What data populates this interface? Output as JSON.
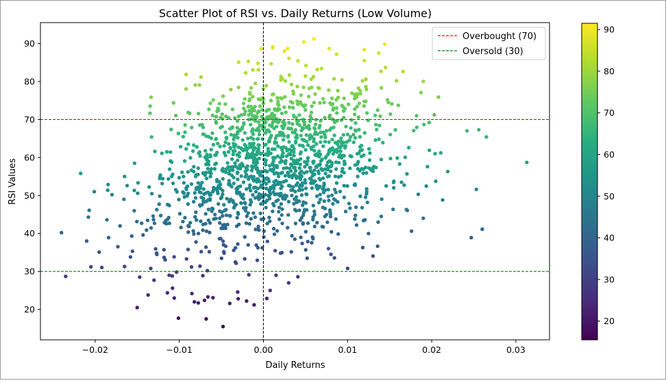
{
  "chart_data": {
    "type": "scatter",
    "title": "Scatter Plot of RSI vs. Daily Returns (Low Volume)",
    "xlabel": "Daily Returns",
    "ylabel": "RSI Values",
    "xlim": [
      -0.0265,
      0.034
    ],
    "ylim": [
      12,
      95.5
    ],
    "x_ticks": [
      -0.02,
      -0.01,
      0.0,
      0.01,
      0.02,
      0.03
    ],
    "x_tick_labels": [
      "−0.02",
      "−0.01",
      "0.00",
      "0.01",
      "0.02",
      "0.03"
    ],
    "y_ticks": [
      20,
      30,
      40,
      50,
      60,
      70,
      80,
      90
    ],
    "y_tick_labels": [
      "20",
      "30",
      "40",
      "50",
      "60",
      "70",
      "80",
      "90"
    ],
    "grid": false,
    "colormap": "viridis",
    "color_value": "RSI",
    "colorbar": {
      "range": [
        15.5,
        91.5
      ],
      "ticks": [
        20,
        30,
        40,
        50,
        60,
        70,
        80,
        90
      ],
      "tick_labels": [
        "20",
        "30",
        "40",
        "50",
        "60",
        "70",
        "80",
        "90"
      ]
    },
    "reference_lines": [
      {
        "orientation": "horizontal",
        "value": 70,
        "color": "#ff0000",
        "style": "dashed",
        "label": "Overbought (70)"
      },
      {
        "orientation": "horizontal",
        "value": 30,
        "color": "#008000",
        "style": "dashed",
        "label": "Oversold (30)"
      },
      {
        "orientation": "vertical",
        "value": 0.0,
        "color": "#000000",
        "style": "dashed",
        "label": ""
      }
    ],
    "legend_placement": "top-right",
    "legend": [
      "Overbought (70)",
      "Oversold (30)"
    ],
    "points": [
      [
        -0.024,
        40.2
      ],
      [
        -0.0235,
        28.7
      ],
      [
        -0.021,
        38.0
      ],
      [
        -0.0205,
        31.2
      ],
      [
        -0.0208,
        44.3
      ],
      [
        -0.0207,
        46.1
      ],
      [
        -0.0201,
        51.0
      ],
      [
        -0.0186,
        43.6
      ],
      [
        -0.0184,
        38.9
      ],
      [
        -0.018,
        50.2
      ],
      [
        -0.0173,
        36.5
      ],
      [
        -0.0165,
        31.3
      ],
      [
        -0.0165,
        55.0
      ],
      [
        -0.0162,
        52.6
      ],
      [
        -0.0158,
        33.8
      ],
      [
        -0.015,
        20.5
      ],
      [
        -0.0147,
        28.5
      ],
      [
        -0.0143,
        39.6
      ],
      [
        -0.0137,
        23.8
      ],
      [
        -0.013,
        27.7
      ],
      [
        -0.0129,
        61.6
      ],
      [
        -0.0122,
        44.7
      ],
      [
        -0.0118,
        33.7
      ],
      [
        -0.0112,
        29.0
      ],
      [
        -0.0108,
        25.6
      ],
      [
        -0.0106,
        23.0
      ],
      [
        -0.0101,
        17.7
      ],
      [
        -0.0101,
        66.3
      ],
      [
        -0.0095,
        55.0
      ],
      [
        -0.0085,
        24.2
      ],
      [
        -0.0082,
        22.0
      ],
      [
        -0.0076,
        79.1
      ],
      [
        -0.0072,
        28.9
      ],
      [
        -0.007,
        22.4
      ],
      [
        -0.0066,
        23.3
      ],
      [
        -0.006,
        23.1
      ],
      [
        -0.0048,
        15.5
      ],
      [
        -0.004,
        21.6
      ],
      [
        -0.003,
        22.8
      ],
      [
        -0.002,
        22.2
      ],
      [
        -0.0011,
        21.2
      ],
      [
        0.0004,
        22.9
      ],
      [
        0.0008,
        25.0
      ],
      [
        0.0015,
        29.0
      ],
      [
        0.003,
        27.0
      ],
      [
        0.0041,
        28.6
      ],
      [
        0.0052,
        33.5
      ],
      [
        0.01,
        30.8
      ],
      [
        0.0118,
        36.3
      ],
      [
        0.014,
        44.5
      ],
      [
        0.017,
        46.3
      ],
      [
        0.0176,
        40.6
      ],
      [
        0.0184,
        50.3
      ],
      [
        0.019,
        44.0
      ],
      [
        0.019,
        80.0
      ],
      [
        0.0195,
        57.6
      ],
      [
        0.0197,
        69.2
      ],
      [
        0.0204,
        61.0
      ],
      [
        0.0203,
        71.2
      ],
      [
        0.0208,
        75.9
      ],
      [
        0.0213,
        48.8
      ],
      [
        0.0219,
        56.3
      ],
      [
        0.0242,
        67.0
      ],
      [
        0.0247,
        38.9
      ],
      [
        0.0253,
        51.6
      ],
      [
        0.0256,
        67.3
      ],
      [
        0.026,
        41.1
      ],
      [
        0.0265,
        65.4
      ],
      [
        0.0313,
        58.7
      ],
      [
        0.0166,
        82.6
      ],
      [
        0.0144,
        89.8
      ],
      [
        0.0137,
        87.5
      ],
      [
        0.012,
        88.4
      ],
      [
        0.006,
        91.2
      ],
      [
        -0.0003,
        88.6
      ],
      [
        0.0011,
        89.1
      ],
      [
        0.0025,
        88.0
      ]
    ]
  }
}
